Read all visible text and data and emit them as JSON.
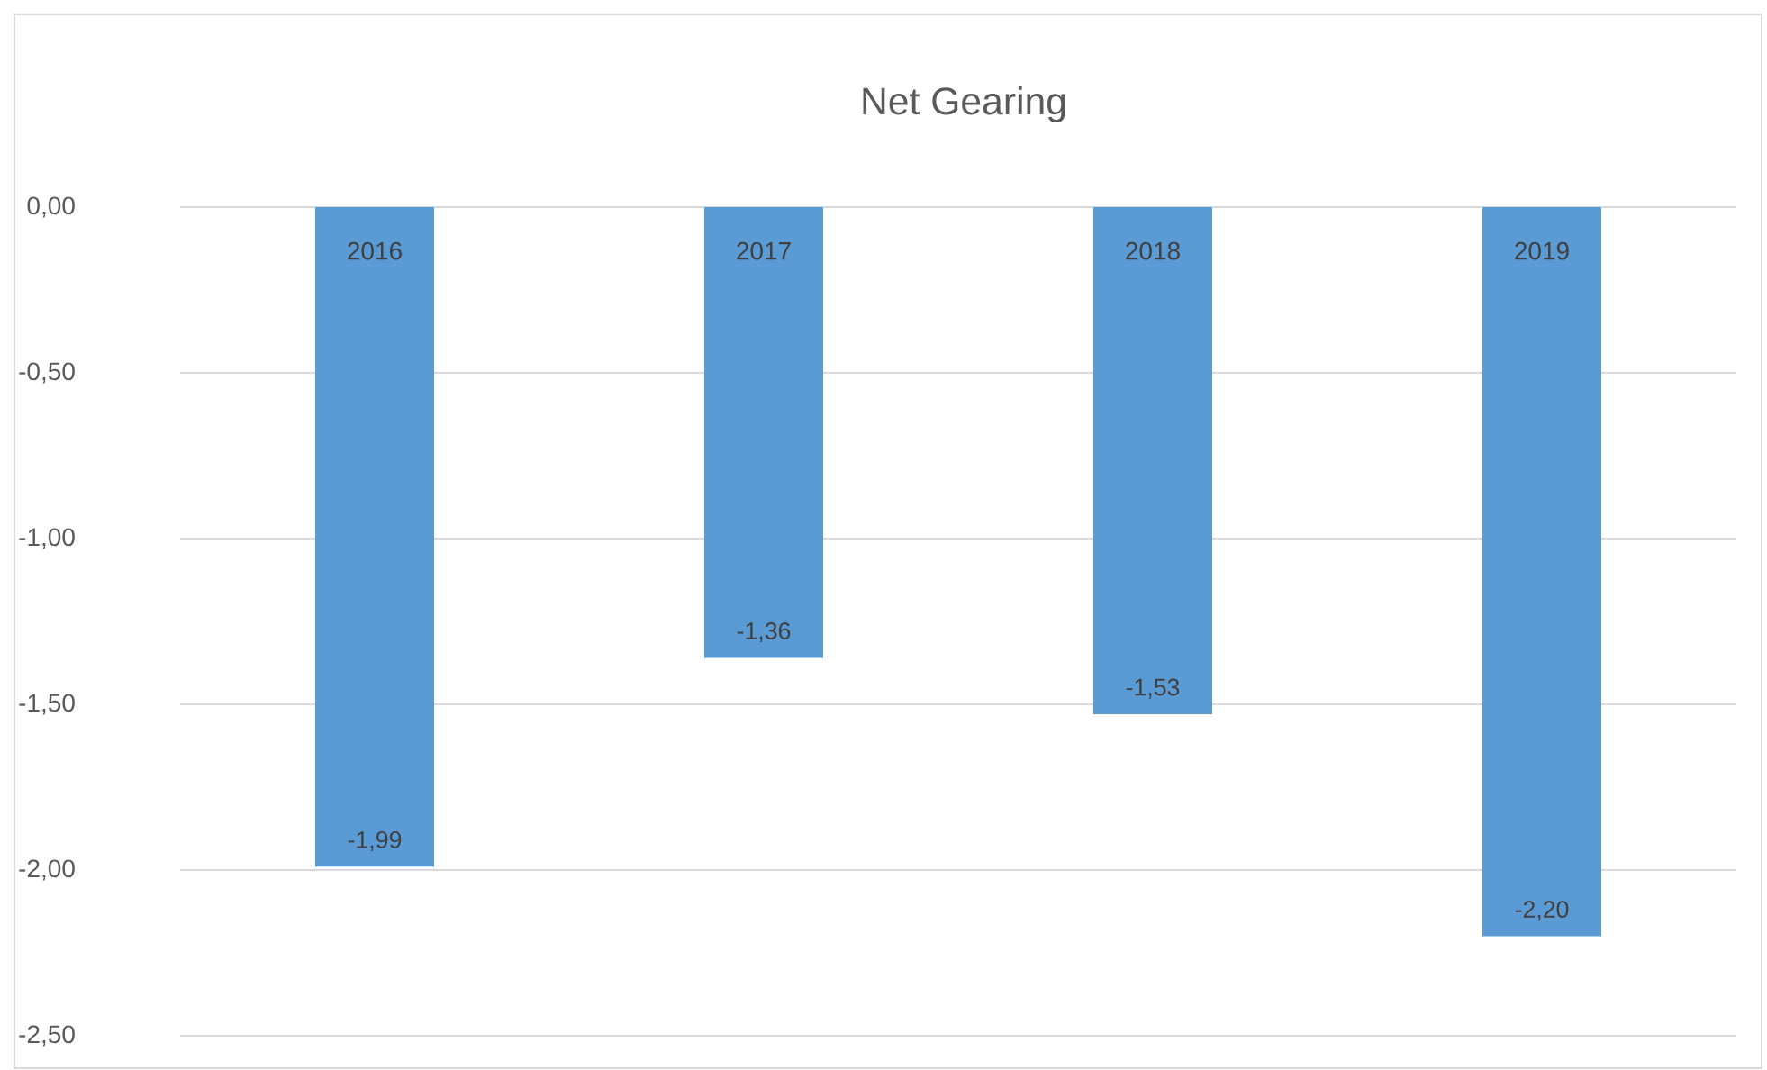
{
  "chart_data": {
    "type": "bar",
    "title": "Net Gearing",
    "categories": [
      "2016",
      "2017",
      "2018",
      "2019"
    ],
    "values": [
      -1.99,
      -1.36,
      -1.53,
      -2.2
    ],
    "value_labels": [
      "-1,99",
      "-1,36",
      "-1,53",
      "-2,20"
    ],
    "color": "#5b9bd5",
    "ylim": [
      -2.5,
      0
    ],
    "yticks": [
      {
        "value": 0,
        "label": "0,00"
      },
      {
        "value": -0.5,
        "label": "-0,50"
      },
      {
        "value": -1,
        "label": "-1,00"
      },
      {
        "value": -1.5,
        "label": "-1,50"
      },
      {
        "value": -2,
        "label": "-2,00"
      },
      {
        "value": -2.5,
        "label": "-2,50"
      }
    ],
    "grid": "y"
  }
}
